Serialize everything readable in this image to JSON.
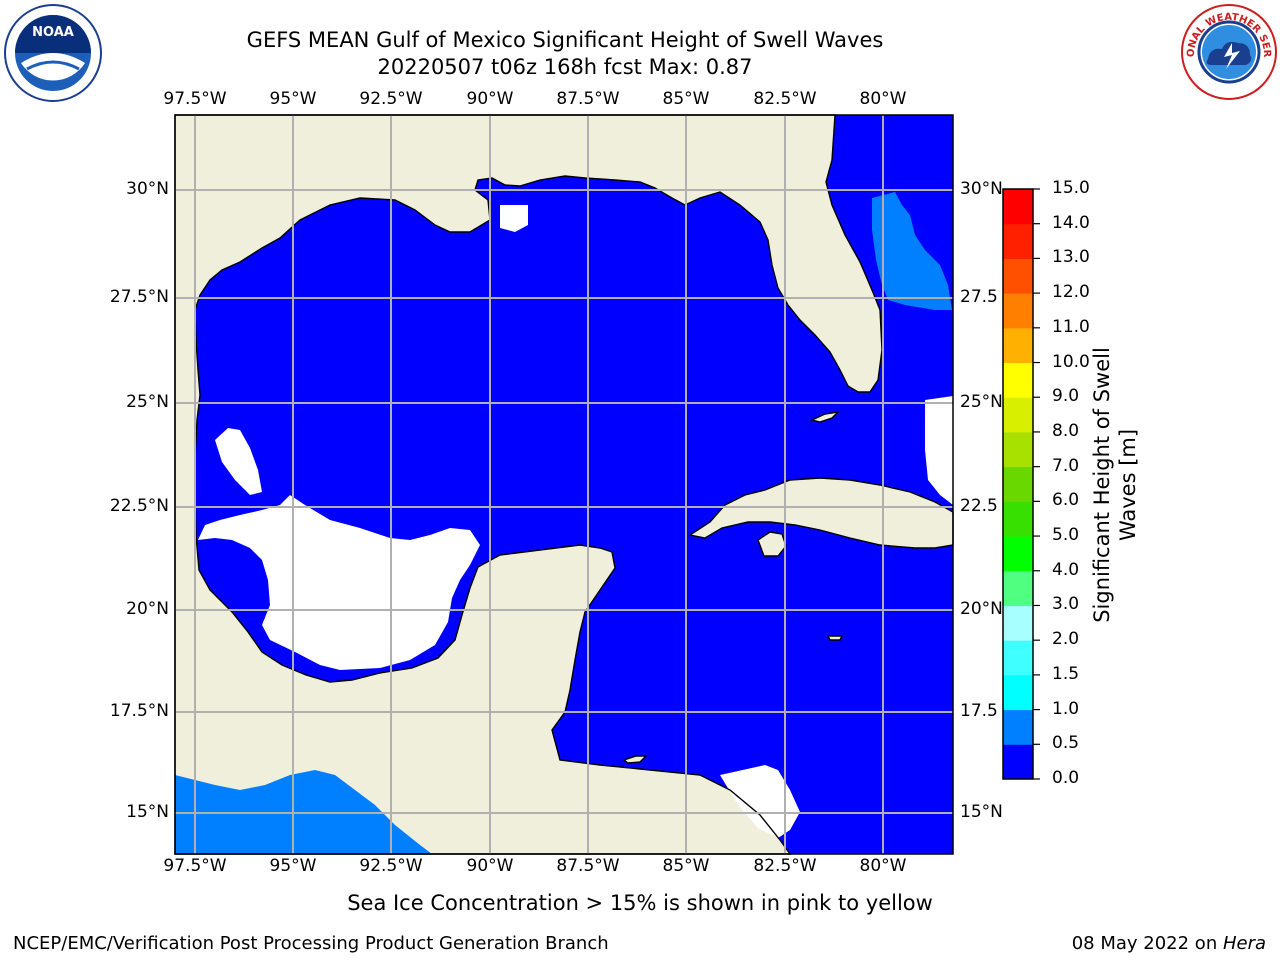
{
  "title_line1": "GEFS MEAN Gulf of Mexico Significant Height of Swell Waves",
  "title_line2": "20220507 t06z 168h fcst   Max: 0.87",
  "lon_labels": [
    "97.5°W",
    "95°W",
    "92.5°W",
    "90°W",
    "87.5°W",
    "85°W",
    "82.5°W",
    "80°W"
  ],
  "lat_labels": [
    "30°N",
    "27.5°N",
    "25°N",
    "22.5°N",
    "20°N",
    "17.5°N",
    "15°N"
  ],
  "lat_labels_right": [
    "30°N",
    "27.5",
    "25°N",
    "22.5",
    "20°N",
    "17.5",
    "15°N"
  ],
  "colorbar": {
    "label_line1": "Significant Height of Swell",
    "label_line2": "Waves [m]",
    "ticks": [
      "15.0",
      "14.0",
      "13.0",
      "12.0",
      "11.0",
      "10.0",
      "9.0",
      "8.0",
      "7.0",
      "6.0",
      "5.0",
      "4.0",
      "3.0",
      "2.0",
      "1.5",
      "1.0",
      "0.5",
      "0.0"
    ],
    "colors": [
      "#0000ff",
      "#007fff",
      "#00ffff",
      "#40ffff",
      "#80ffff",
      "#a8ffff",
      "#50ff80",
      "#00ff00",
      "#38e000",
      "#68d800",
      "#a8e000",
      "#d8f000",
      "#ffff00",
      "#ffe000",
      "#ffb000",
      "#ff8000",
      "#ff5000",
      "#ff2000",
      "#ff0000"
    ]
  },
  "colors": {
    "land": "#efefdc",
    "ocean_low": "#0000ff",
    "ocean_mid": "#007fff",
    "nodata": "#ffffff",
    "grid": "#b0b0b0"
  },
  "note": "Sea Ice Concentration > 15% is shown in pink to yellow",
  "footer_left": "NCEP/EMC/Verification Post Processing Product Generation Branch",
  "footer_right_prefix": "08 May 2022 on ",
  "footer_right_host": "Hera",
  "logos": {
    "noaa_text": "NOAA",
    "nws_text": "NATIONAL WEATHER SERVICE"
  }
}
